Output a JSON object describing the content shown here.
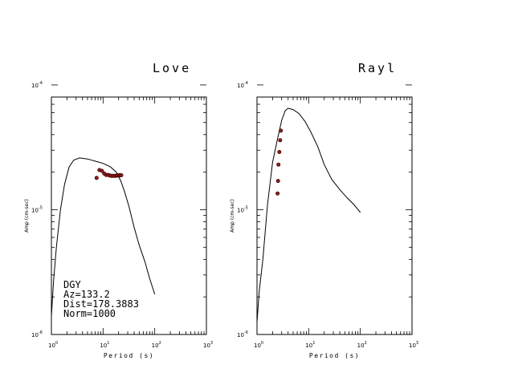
{
  "chart_data": [
    {
      "type": "line",
      "title": "Love",
      "xlabel": "Period (s)",
      "ylabel": "Amp (cm-sec)",
      "xscale": "log",
      "yscale": "log",
      "xlim": [
        1,
        1000
      ],
      "ylim": [
        1e-06,
        8e-05
      ],
      "xticks": [
        "10",
        "10",
        "10",
        "10"
      ],
      "xtick_exps": [
        "0",
        "1",
        "2",
        "3"
      ],
      "yticks": [
        "10",
        "10",
        "10"
      ],
      "ytick_exps": [
        "-6",
        "-5",
        "-4"
      ],
      "annotations": [
        "DGY",
        "Az=133.2",
        "Dist=178.3883",
        "Norm=1000"
      ],
      "series": [
        {
          "kind": "line",
          "x": [
            1.0,
            1.1,
            1.25,
            1.5,
            1.8,
            2.2,
            2.7,
            3.5,
            5,
            7,
            10,
            14,
            18,
            22,
            26,
            32,
            40,
            50,
            65,
            80,
            100
          ],
          "y": [
            1.4e-06,
            2.7e-06,
            5e-06,
            1e-05,
            1.6e-05,
            2.2e-05,
            2.5e-05,
            2.6e-05,
            2.55e-05,
            2.45e-05,
            2.35e-05,
            2.2e-05,
            2e-05,
            1.7e-05,
            1.4e-05,
            1.05e-05,
            7.2e-06,
            5.2e-06,
            3.8e-06,
            2.8e-06,
            2.1e-06
          ]
        },
        {
          "kind": "points",
          "color": "#8b1a1a",
          "x": [
            7.5,
            8.5,
            9.5,
            10.5,
            11.5,
            12.5,
            13.5,
            14.5,
            15.5,
            16.5,
            17.5,
            18.5,
            19.5,
            20.5,
            21.5,
            22.5
          ],
          "y": [
            1.8e-05,
            2.08e-05,
            2.05e-05,
            1.95e-05,
            1.9e-05,
            1.9e-05,
            1.88e-05,
            1.87e-05,
            1.87e-05,
            1.87e-05,
            1.87e-05,
            1.88e-05,
            1.88e-05,
            1.89e-05,
            1.89e-05,
            1.89e-05
          ]
        }
      ]
    },
    {
      "type": "line",
      "title": "Rayl",
      "xlabel": "Period (s)",
      "ylabel": "Amp (cm-sec)",
      "xscale": "log",
      "yscale": "log",
      "xlim": [
        1,
        1000
      ],
      "ylim": [
        1e-06,
        8e-05
      ],
      "xticks": [
        "10",
        "10",
        "10",
        "10"
      ],
      "xtick_exps": [
        "0",
        "1",
        "2",
        "3"
      ],
      "yticks": [
        "10",
        "10",
        "10"
      ],
      "ytick_exps": [
        "-6",
        "-5",
        "-4"
      ],
      "annotations": [],
      "series": [
        {
          "kind": "line",
          "x": [
            1.0,
            1.1,
            1.3,
            1.6,
            2.0,
            2.5,
            3.0,
            3.5,
            4.0,
            5.0,
            6.5,
            8.5,
            11,
            15,
            20,
            28,
            40,
            55,
            75,
            100
          ],
          "y": [
            1.25e-06,
            2.2e-06,
            4e-06,
            1.1e-05,
            2.4e-05,
            3.7e-05,
            5.2e-05,
            6.2e-05,
            6.5e-05,
            6.35e-05,
            5.9e-05,
            5.1e-05,
            4.2e-05,
            3.2e-05,
            2.3e-05,
            1.75e-05,
            1.45e-05,
            1.25e-05,
            1.1e-05,
            9.5e-06
          ]
        },
        {
          "kind": "points",
          "color": "#8b1a1a",
          "x": [
            2.5,
            2.55,
            2.6,
            2.7,
            2.8,
            2.9
          ],
          "y": [
            1.35e-05,
            1.7e-05,
            2.3e-05,
            2.9e-05,
            3.6e-05,
            4.3e-05
          ]
        }
      ]
    }
  ]
}
